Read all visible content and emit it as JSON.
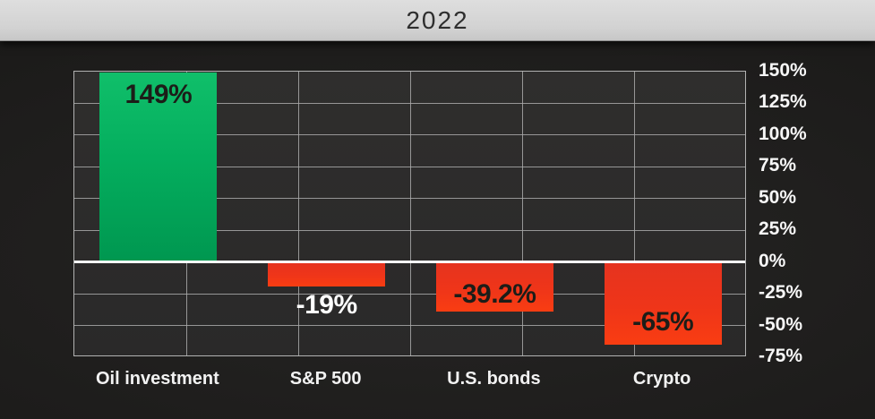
{
  "header": {
    "title": "2022"
  },
  "chart_data": {
    "type": "bar",
    "title": "2022",
    "categories": [
      "Oil investment",
      "S&P 500",
      "U.S. bonds",
      "Crypto"
    ],
    "values": [
      149,
      -19,
      -39.2,
      -65
    ],
    "value_labels": [
      "149%",
      "-19%",
      "-39.2%",
      "-65%"
    ],
    "xlabel": "",
    "ylabel": "",
    "ylim": [
      -75,
      150
    ],
    "ytick_step": 25,
    "ytick_labels": [
      "150%",
      "125%",
      "100%",
      "75%",
      "50%",
      "25%",
      "0%",
      "-25%",
      "-50%",
      "-75%"
    ],
    "x_grid_intervals": 6,
    "grid": "on",
    "legend": "none",
    "colors": {
      "positive_bar": "#0abf68",
      "positive_bar_dark": "#009750",
      "negative_bar": "#ef3519",
      "grid_line": "#a9a9a9",
      "plot_background": "#2b2a2a",
      "zero_line": "#ffffff",
      "value_on_bar_text": "#1c1d18",
      "value_below_bar_text": "#ffffff",
      "axis_text": "#f7f7f7",
      "header_background": "#d4d4d4",
      "header_text": "#2e2e2e"
    }
  }
}
